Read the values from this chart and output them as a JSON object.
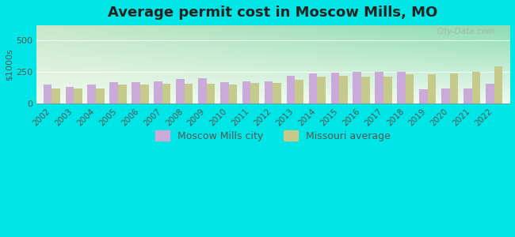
{
  "title": "Average permit cost in Moscow Mills, MO",
  "ylabel": "$1000s",
  "years": [
    2002,
    2003,
    2004,
    2005,
    2006,
    2007,
    2008,
    2009,
    2010,
    2011,
    2012,
    2013,
    2014,
    2015,
    2016,
    2017,
    2018,
    2019,
    2020,
    2021,
    2022
  ],
  "moscow_mills": [
    150,
    130,
    150,
    165,
    170,
    175,
    195,
    200,
    170,
    175,
    175,
    215,
    235,
    245,
    250,
    250,
    250,
    110,
    120,
    115,
    155
  ],
  "missouri_avg": [
    120,
    120,
    120,
    150,
    150,
    155,
    155,
    155,
    150,
    160,
    160,
    185,
    210,
    215,
    210,
    210,
    230,
    230,
    235,
    250,
    295
  ],
  "moscow_color": "#c9aad8",
  "missouri_color": "#c5c98a",
  "bar_width": 0.38,
  "ylim": [
    0,
    620
  ],
  "yticks": [
    0,
    250,
    500
  ],
  "bg_outer": "#00e5e5",
  "bg_plot_top_left": "#ddeedd",
  "bg_plot_top_right": "#e8f5e8",
  "bg_plot_bottom": "#f5faee",
  "title_fontsize": 13,
  "legend_fontsize": 9,
  "axis_fontsize": 8,
  "watermark": "City-Data.com"
}
